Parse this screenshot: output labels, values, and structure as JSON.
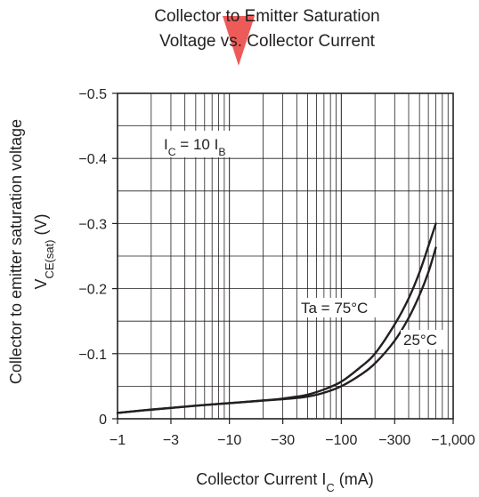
{
  "chart_data": {
    "type": "line",
    "title_lines": [
      "Collector to Emitter Saturation",
      "Voltage vs. Collector Current"
    ],
    "xlabel": "Collector Current",
    "xlabel_symbol": "I",
    "xlabel_subscript": "C",
    "xlabel_unit": "(mA)",
    "ylabel_line1": "Collector to emitter saturation voltage",
    "ylabel_symbol": "V",
    "ylabel_subscript": "CE(sat)",
    "ylabel_unit": "(V)",
    "x_scale": "log",
    "xlim": [
      -1,
      -1000
    ],
    "ylim": [
      0,
      -0.5
    ],
    "x_ticks": [
      -1,
      -3,
      -10,
      -30,
      -100,
      -300,
      -1000
    ],
    "x_tick_labels": [
      "−1",
      "−3",
      "−10",
      "−30",
      "−100",
      "−300",
      "−1,000"
    ],
    "y_ticks": [
      0,
      -0.1,
      -0.2,
      -0.3,
      -0.4,
      -0.5
    ],
    "y_tick_labels": [
      "0",
      "−0.1",
      "−0.2",
      "−0.3",
      "−0.4",
      "−0.5"
    ],
    "grid": true,
    "condition": {
      "prefix": "I",
      "prefix_sub": "C",
      "middle": " = 10 I",
      "suffix_sub": "B"
    },
    "series": [
      {
        "name": "Ta = 75°C",
        "x": [
          -1,
          -2,
          -5,
          -10,
          -20,
          -30,
          -40,
          -50,
          -70,
          -100,
          -150,
          -200,
          -300,
          -400,
          -500,
          -600,
          -700
        ],
        "y": [
          -0.009,
          -0.014,
          -0.02,
          -0.024,
          -0.028,
          -0.031,
          -0.034,
          -0.037,
          -0.045,
          -0.057,
          -0.08,
          -0.1,
          -0.145,
          -0.185,
          -0.225,
          -0.265,
          -0.3
        ]
      },
      {
        "name": "25°C",
        "x": [
          -1,
          -2,
          -5,
          -10,
          -20,
          -30,
          -40,
          -50,
          -70,
          -100,
          -150,
          -200,
          -300,
          -400,
          -500,
          -600,
          -700
        ],
        "y": [
          -0.009,
          -0.014,
          -0.02,
          -0.024,
          -0.028,
          -0.03,
          -0.032,
          -0.034,
          -0.04,
          -0.05,
          -0.068,
          -0.085,
          -0.12,
          -0.155,
          -0.19,
          -0.225,
          -0.263
        ]
      }
    ],
    "colors": {
      "ink": "#231f20",
      "watermark": "#e8322f"
    }
  }
}
